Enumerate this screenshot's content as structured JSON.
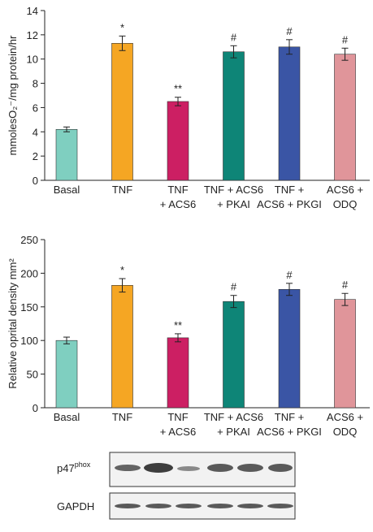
{
  "chart_data": [
    {
      "type": "bar",
      "y_label": "mmolesO₂⁻/mg protein/hr",
      "categories": [
        [
          "Basal"
        ],
        [
          "TNF"
        ],
        [
          "TNF",
          "+ ACS6"
        ],
        [
          "TNF + ACS6",
          "+ PKAI"
        ],
        [
          "TNF +",
          "ACS6 + PKGI"
        ],
        [
          "ACS6 +",
          "ODQ"
        ]
      ],
      "values": [
        4.2,
        11.3,
        6.5,
        10.6,
        11.0,
        10.4
      ],
      "errors": [
        0.2,
        0.6,
        0.35,
        0.5,
        0.6,
        0.5
      ],
      "annotations": [
        null,
        "*",
        "**",
        "#",
        "#",
        "#"
      ],
      "colors": [
        "#7fcfc0",
        "#f5a623",
        "#cc1f63",
        "#0e8577",
        "#3a55a5",
        "#e0959a"
      ],
      "ylim": [
        0,
        14
      ],
      "yticks": [
        0,
        2,
        4,
        6,
        8,
        10,
        12,
        14
      ]
    },
    {
      "type": "bar",
      "y_label": "Relative oprital density mm²",
      "categories": [
        [
          "Basal"
        ],
        [
          "TNF"
        ],
        [
          "TNF",
          "+ ACS6"
        ],
        [
          "TNF + ACS6",
          "+ PKAI"
        ],
        [
          "TNF +",
          "ACS6 + PKGI"
        ],
        [
          "ACS6 +",
          "ODQ"
        ]
      ],
      "values": [
        100,
        182,
        104,
        158,
        176,
        161
      ],
      "errors": [
        5,
        10,
        6,
        9,
        9,
        9
      ],
      "annotations": [
        null,
        "*",
        "**",
        "#",
        "#",
        "#"
      ],
      "colors": [
        "#7fcfc0",
        "#f5a623",
        "#cc1f63",
        "#0e8577",
        "#3a55a5",
        "#e0959a"
      ],
      "ylim": [
        0,
        250
      ],
      "yticks": [
        0,
        50,
        100,
        150,
        200,
        250
      ]
    }
  ],
  "blot": {
    "rows": [
      {
        "name": "p47",
        "superscript": "phox"
      },
      {
        "name": "GAPDH"
      }
    ]
  }
}
